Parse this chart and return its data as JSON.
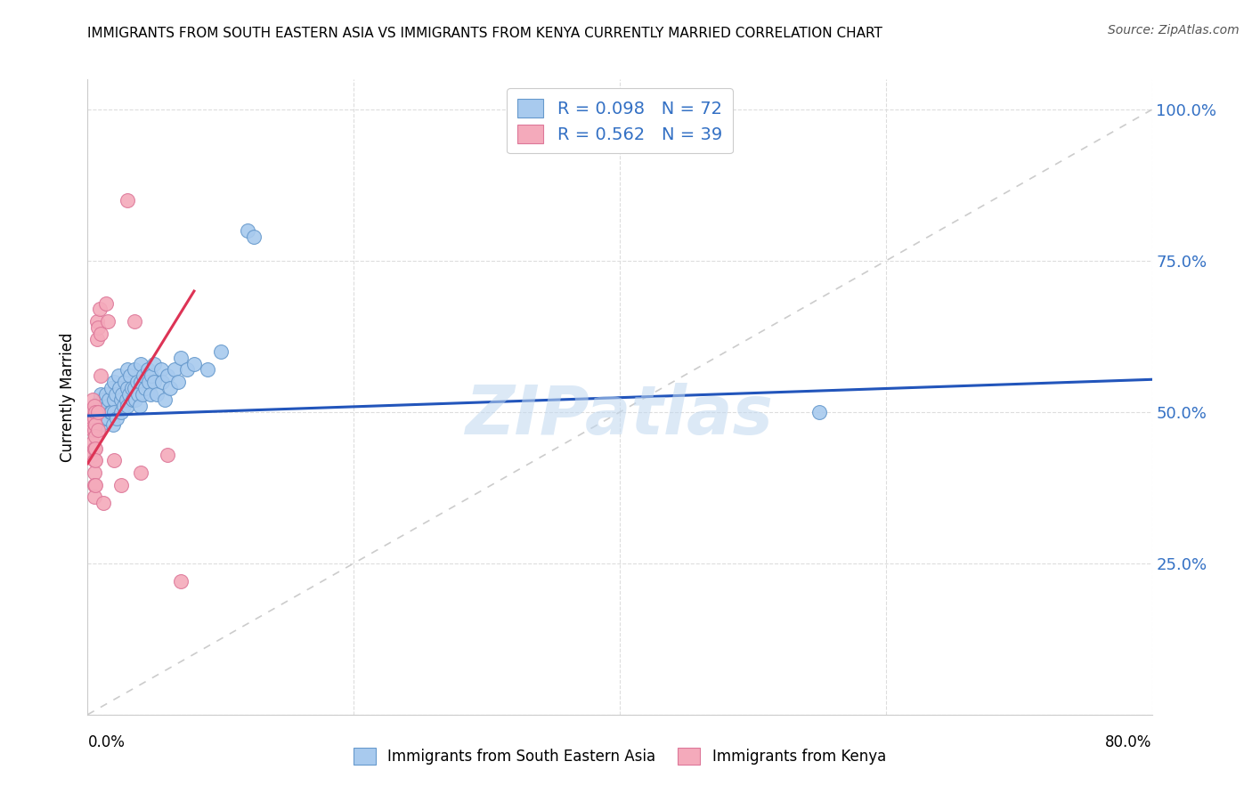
{
  "title": "IMMIGRANTS FROM SOUTH EASTERN ASIA VS IMMIGRANTS FROM KENYA CURRENTLY MARRIED CORRELATION CHART",
  "source": "Source: ZipAtlas.com",
  "ylabel": "Currently Married",
  "ytick_values": [
    0.0,
    0.25,
    0.5,
    0.75,
    1.0
  ],
  "ytick_labels_right": [
    "",
    "25.0%",
    "50.0%",
    "75.0%",
    "100.0%"
  ],
  "xlim": [
    0.0,
    0.8
  ],
  "ylim": [
    0.0,
    1.05
  ],
  "legend_r1": "R = 0.098",
  "legend_n1": "N = 72",
  "legend_r2": "R = 0.562",
  "legend_n2": "N = 39",
  "color_blue_fill": "#A8CAEE",
  "color_blue_edge": "#6699CC",
  "color_pink_fill": "#F4AABB",
  "color_pink_edge": "#DD7799",
  "color_line_blue": "#2255BB",
  "color_line_pink": "#DD3355",
  "color_diag": "#CCCCCC",
  "color_blue_text": "#3370C4",
  "watermark": "ZIPatlas",
  "blue_scatter": [
    [
      0.005,
      0.5
    ],
    [
      0.007,
      0.51
    ],
    [
      0.008,
      0.49
    ],
    [
      0.009,
      0.52
    ],
    [
      0.01,
      0.5
    ],
    [
      0.01,
      0.53
    ],
    [
      0.01,
      0.48
    ],
    [
      0.011,
      0.51
    ],
    [
      0.012,
      0.5
    ],
    [
      0.012,
      0.52
    ],
    [
      0.013,
      0.49
    ],
    [
      0.014,
      0.53
    ],
    [
      0.015,
      0.51
    ],
    [
      0.015,
      0.49
    ],
    [
      0.016,
      0.52
    ],
    [
      0.017,
      0.5
    ],
    [
      0.018,
      0.54
    ],
    [
      0.018,
      0.5
    ],
    [
      0.019,
      0.48
    ],
    [
      0.02,
      0.55
    ],
    [
      0.02,
      0.52
    ],
    [
      0.02,
      0.5
    ],
    [
      0.021,
      0.53
    ],
    [
      0.022,
      0.49
    ],
    [
      0.023,
      0.56
    ],
    [
      0.024,
      0.54
    ],
    [
      0.025,
      0.52
    ],
    [
      0.025,
      0.5
    ],
    [
      0.026,
      0.53
    ],
    [
      0.027,
      0.51
    ],
    [
      0.028,
      0.55
    ],
    [
      0.029,
      0.52
    ],
    [
      0.03,
      0.57
    ],
    [
      0.03,
      0.54
    ],
    [
      0.03,
      0.51
    ],
    [
      0.031,
      0.53
    ],
    [
      0.032,
      0.56
    ],
    [
      0.033,
      0.54
    ],
    [
      0.034,
      0.52
    ],
    [
      0.035,
      0.57
    ],
    [
      0.035,
      0.54
    ],
    [
      0.036,
      0.52
    ],
    [
      0.037,
      0.55
    ],
    [
      0.038,
      0.53
    ],
    [
      0.039,
      0.51
    ],
    [
      0.04,
      0.58
    ],
    [
      0.04,
      0.55
    ],
    [
      0.041,
      0.53
    ],
    [
      0.042,
      0.56
    ],
    [
      0.043,
      0.54
    ],
    [
      0.045,
      0.57
    ],
    [
      0.046,
      0.55
    ],
    [
      0.047,
      0.53
    ],
    [
      0.048,
      0.56
    ],
    [
      0.05,
      0.58
    ],
    [
      0.05,
      0.55
    ],
    [
      0.052,
      0.53
    ],
    [
      0.055,
      0.57
    ],
    [
      0.056,
      0.55
    ],
    [
      0.058,
      0.52
    ],
    [
      0.06,
      0.56
    ],
    [
      0.062,
      0.54
    ],
    [
      0.065,
      0.57
    ],
    [
      0.068,
      0.55
    ],
    [
      0.07,
      0.59
    ],
    [
      0.075,
      0.57
    ],
    [
      0.08,
      0.58
    ],
    [
      0.09,
      0.57
    ],
    [
      0.1,
      0.6
    ],
    [
      0.12,
      0.8
    ],
    [
      0.125,
      0.79
    ],
    [
      0.55,
      0.5
    ]
  ],
  "pink_scatter": [
    [
      0.003,
      0.5
    ],
    [
      0.003,
      0.48
    ],
    [
      0.004,
      0.52
    ],
    [
      0.004,
      0.49
    ],
    [
      0.004,
      0.47
    ],
    [
      0.004,
      0.45
    ],
    [
      0.004,
      0.43
    ],
    [
      0.005,
      0.51
    ],
    [
      0.005,
      0.49
    ],
    [
      0.005,
      0.47
    ],
    [
      0.005,
      0.44
    ],
    [
      0.005,
      0.42
    ],
    [
      0.005,
      0.4
    ],
    [
      0.005,
      0.38
    ],
    [
      0.005,
      0.36
    ],
    [
      0.006,
      0.5
    ],
    [
      0.006,
      0.48
    ],
    [
      0.006,
      0.46
    ],
    [
      0.006,
      0.44
    ],
    [
      0.006,
      0.42
    ],
    [
      0.006,
      0.38
    ],
    [
      0.007,
      0.65
    ],
    [
      0.007,
      0.62
    ],
    [
      0.008,
      0.64
    ],
    [
      0.008,
      0.5
    ],
    [
      0.008,
      0.47
    ],
    [
      0.009,
      0.67
    ],
    [
      0.01,
      0.63
    ],
    [
      0.01,
      0.56
    ],
    [
      0.012,
      0.35
    ],
    [
      0.014,
      0.68
    ],
    [
      0.015,
      0.65
    ],
    [
      0.02,
      0.42
    ],
    [
      0.025,
      0.38
    ],
    [
      0.03,
      0.85
    ],
    [
      0.035,
      0.65
    ],
    [
      0.04,
      0.4
    ],
    [
      0.06,
      0.43
    ],
    [
      0.07,
      0.22
    ]
  ],
  "blue_trendline": [
    [
      0.0,
      0.494
    ],
    [
      0.8,
      0.554
    ]
  ],
  "pink_trendline": [
    [
      0.0,
      0.415
    ],
    [
      0.08,
      0.7
    ]
  ],
  "diag_line": [
    [
      0.0,
      0.0
    ],
    [
      0.8,
      1.0
    ]
  ]
}
